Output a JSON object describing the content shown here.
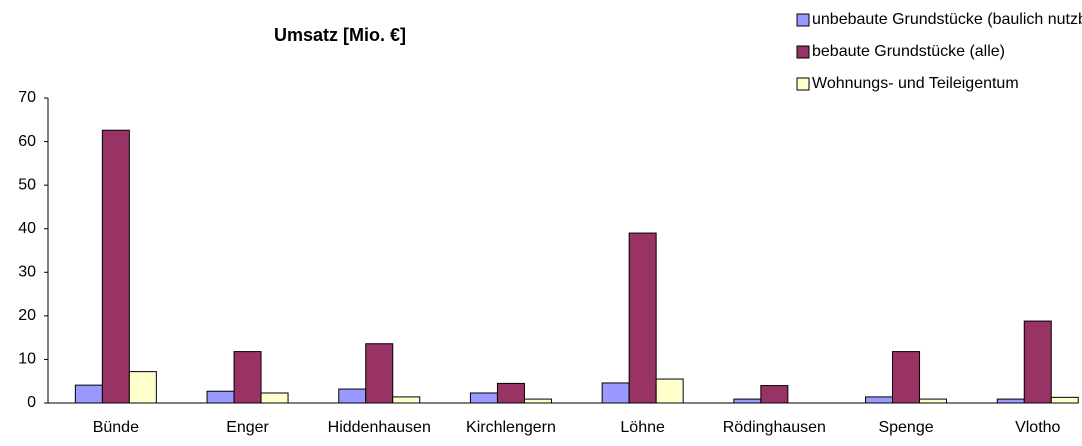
{
  "chart_data": {
    "type": "bar",
    "title": "Umsatz [Mio. €]",
    "categories": [
      "Bünde",
      "Enger",
      "Hiddenhausen",
      "Kirchlengern",
      "Löhne",
      "Rödinghausen",
      "Spenge",
      "Vlotho"
    ],
    "series": [
      {
        "name": "unbebaute Grundstücke (baulich nutzbar)",
        "color": "#9999ff",
        "values": [
          4.1,
          2.7,
          3.2,
          2.3,
          4.6,
          0.9,
          1.4,
          0.9
        ]
      },
      {
        "name": "bebaute Grundstücke (alle)",
        "color": "#993366",
        "values": [
          62.6,
          11.8,
          13.6,
          4.5,
          39.0,
          4.0,
          11.8,
          18.8
        ]
      },
      {
        "name": "Wohnungs- und Teileigentum",
        "color": "#ffffcc",
        "values": [
          7.2,
          2.3,
          1.4,
          0.9,
          5.5,
          0,
          0.9,
          1.3
        ]
      }
    ],
    "ylim": [
      0,
      70
    ],
    "yticks": [
      0,
      10,
      20,
      30,
      40,
      50,
      60,
      70
    ],
    "grid": false,
    "legend": "top-right"
  }
}
